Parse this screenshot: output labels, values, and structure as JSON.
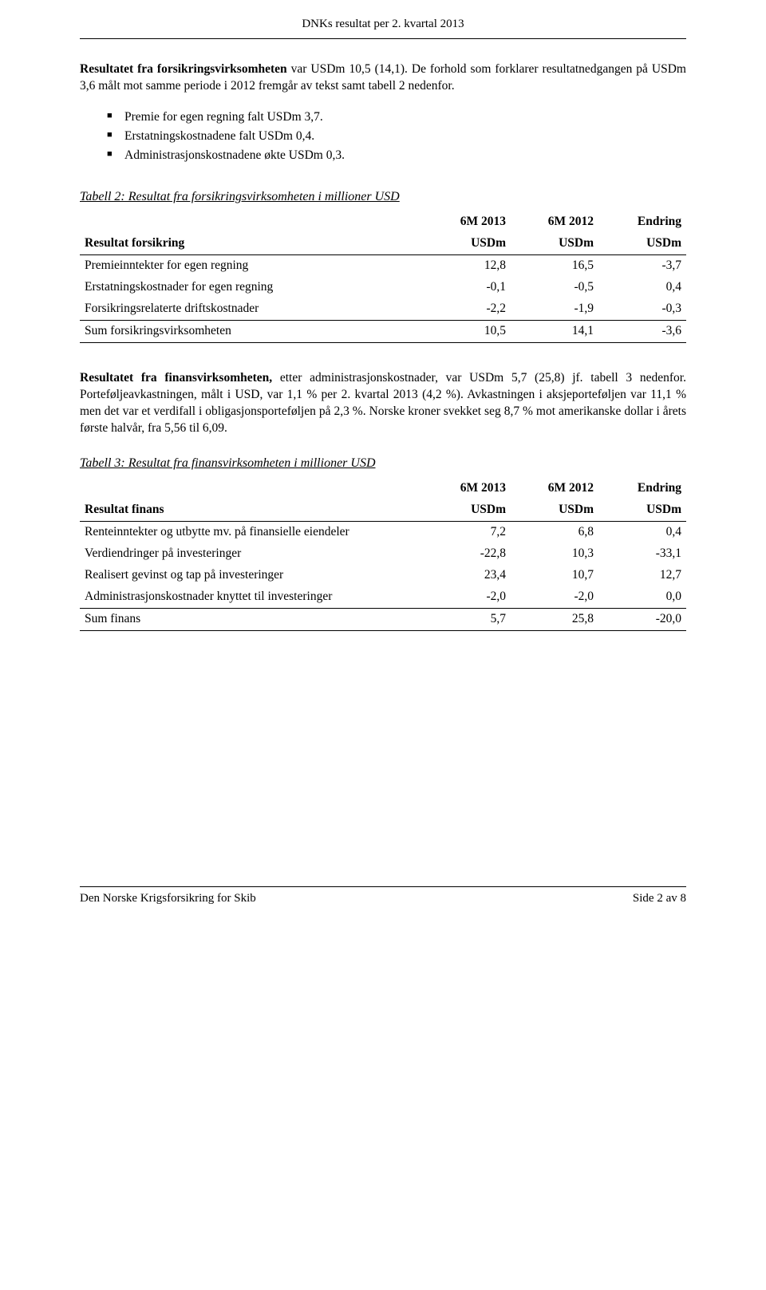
{
  "header": {
    "title": "DNKs resultat per 2. kvartal 2013"
  },
  "para1": {
    "lead_bold": "Resultatet fra forsikringsvirksomheten",
    "rest": " var USDm 10,5 (14,1). De forhold som forklarer resultatnedgangen på USDm 3,6 målt mot samme periode i 2012 fremgår av tekst samt tabell 2 nedenfor."
  },
  "bullets": [
    "Premie for egen regning falt USDm 3,7.",
    "Erstatningskostnadene falt USDm 0,4.",
    "Administrasjonskostnadene økte USDm 0,3."
  ],
  "table2": {
    "caption": "Tabell 2: Resultat fra forsikringsvirksomheten i millioner USD",
    "head": {
      "c1": "6M 2013",
      "c2": "6M 2012",
      "c3": "Endring"
    },
    "sub": {
      "label": "Resultat forsikring",
      "u": "USDm"
    },
    "rows": [
      {
        "label": "Premieinntekter for egen regning",
        "c1": "12,8",
        "c2": "16,5",
        "c3": "-3,7"
      },
      {
        "label": "Erstatningskostnader for egen regning",
        "c1": "-0,1",
        "c2": "-0,5",
        "c3": "0,4"
      },
      {
        "label": "Forsikringsrelaterte driftskostnader",
        "c1": "-2,2",
        "c2": "-1,9",
        "c3": "-0,3"
      }
    ],
    "total": {
      "label": "Sum forsikringsvirksomheten",
      "c1": "10,5",
      "c2": "14,1",
      "c3": "-3,6"
    }
  },
  "para2": {
    "lead_bold": "Resultatet fra finansvirksomheten,",
    "rest": " etter administrasjonskostnader, var USDm 5,7 (25,8) jf. tabell 3 nedenfor. Porteføljeavkastningen, målt i USD, var 1,1 % per 2. kvartal 2013 (4,2 %). Avkastningen i aksjeporteføljen var 11,1 % men det var et verdifall i obligasjonsporteføljen på 2,3 %. Norske kroner svekket seg 8,7 % mot amerikanske dollar i årets første halvår, fra 5,56 til 6,09."
  },
  "table3": {
    "caption": "Tabell 3: Resultat fra finansvirksomheten i millioner USD",
    "head": {
      "c1": "6M 2013",
      "c2": "6M 2012",
      "c3": "Endring"
    },
    "sub": {
      "label": "Resultat finans",
      "u": "USDm"
    },
    "rows": [
      {
        "label": "Renteinntekter og utbytte mv. på finansielle eiendeler",
        "c1": "7,2",
        "c2": "6,8",
        "c3": "0,4"
      },
      {
        "label": "Verdiendringer på investeringer",
        "c1": "-22,8",
        "c2": "10,3",
        "c3": "-33,1"
      },
      {
        "label": "Realisert gevinst og tap på investeringer",
        "c1": "23,4",
        "c2": "10,7",
        "c3": "12,7"
      },
      {
        "label": "Administrasjonskostnader knyttet til investeringer",
        "c1": "-2,0",
        "c2": "-2,0",
        "c3": "0,0"
      }
    ],
    "total": {
      "label": "Sum finans",
      "c1": "5,7",
      "c2": "25,8",
      "c3": "-20,0"
    }
  },
  "footer": {
    "left": "Den Norske Krigsforsikring for Skib",
    "right": "Side 2 av 8"
  }
}
